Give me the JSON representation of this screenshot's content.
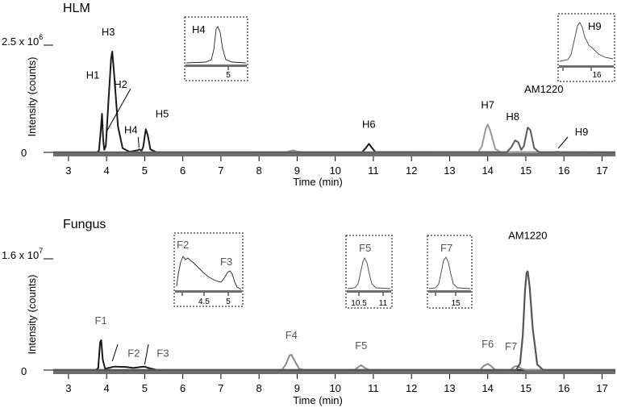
{
  "chart_data": [
    {
      "type": "line",
      "title": "HLM",
      "xlabel": "Time (min)",
      "ylabel": "Intensity (counts)",
      "y_top_label": {
        "mantissa": "2.5 x 10",
        "exponent": "6"
      },
      "y_zero_label": "0",
      "xlim": [
        2.6,
        17.35
      ],
      "ylim": [
        0,
        2500000
      ],
      "x_ticks": [
        3,
        4,
        5,
        6,
        7,
        8,
        9,
        10,
        11,
        12,
        13,
        14,
        15,
        16,
        17
      ],
      "grid": false,
      "series": [
        {
          "color": "#1a1a1a",
          "width": 2.0,
          "points": [
            [
              2.6,
              2000
            ],
            [
              3.75,
              2000
            ],
            [
              3.8,
              40000
            ],
            [
              3.85,
              550000
            ],
            [
              3.88,
              900000
            ],
            [
              3.91,
              300000
            ],
            [
              3.94,
              60000
            ],
            [
              3.98,
              150000
            ],
            [
              4.05,
              1200000
            ],
            [
              4.12,
              2200000
            ],
            [
              4.15,
              2350000
            ],
            [
              4.2,
              1800000
            ],
            [
              4.3,
              600000
            ],
            [
              4.42,
              100000
            ],
            [
              4.6,
              15000
            ],
            [
              4.82,
              50000
            ],
            [
              4.86,
              70000
            ],
            [
              4.92,
              40000
            ],
            [
              4.96,
              120000
            ],
            [
              5.03,
              540000
            ],
            [
              5.08,
              400000
            ],
            [
              5.15,
              70000
            ],
            [
              5.3,
              5000
            ],
            [
              10.7,
              3000
            ],
            [
              10.8,
              100000
            ],
            [
              10.88,
              200000
            ],
            [
              10.95,
              120000
            ],
            [
              11.05,
              10000
            ],
            [
              17.35,
              2000
            ]
          ]
        },
        {
          "color": "#9a9a9a",
          "width": 2.0,
          "points": [
            [
              2.6,
              2000
            ],
            [
              8.7,
              3000
            ],
            [
              8.8,
              30000
            ],
            [
              8.9,
              50000
            ],
            [
              9.0,
              20000
            ],
            [
              9.15,
              3000
            ],
            [
              13.75,
              3000
            ],
            [
              13.85,
              150000
            ],
            [
              13.95,
              550000
            ],
            [
              14.0,
              650000
            ],
            [
              14.07,
              500000
            ],
            [
              14.2,
              80000
            ],
            [
              14.35,
              5000
            ],
            [
              17.35,
              2000
            ]
          ]
        },
        {
          "color": "#5a5a5a",
          "width": 2.0,
          "points": [
            [
              2.6,
              2000
            ],
            [
              14.5,
              3000
            ],
            [
              14.62,
              120000
            ],
            [
              14.72,
              280000
            ],
            [
              14.8,
              240000
            ],
            [
              14.88,
              60000
            ],
            [
              14.95,
              150000
            ],
            [
              15.05,
              580000
            ],
            [
              15.12,
              520000
            ],
            [
              15.22,
              100000
            ],
            [
              15.35,
              5000
            ],
            [
              15.75,
              5000
            ],
            [
              15.82,
              15000
            ],
            [
              15.9,
              8000
            ],
            [
              17.35,
              2000
            ]
          ]
        }
      ],
      "annotations": [
        {
          "label": "H1",
          "x": 3.85,
          "y": 550000
        },
        {
          "label": "H2",
          "x": 3.98,
          "y": 150000
        },
        {
          "label": "H3",
          "x": 4.15,
          "y": 2350000
        },
        {
          "label": "H4",
          "x": 4.85,
          "y": 70000
        },
        {
          "label": "H5",
          "x": 5.03,
          "y": 540000
        },
        {
          "label": "H6",
          "x": 10.88,
          "y": 200000
        },
        {
          "label": "H7",
          "x": 14.0,
          "y": 650000
        },
        {
          "label": "H8",
          "x": 14.72,
          "y": 280000
        },
        {
          "label": "AM1220",
          "x": 15.05,
          "y": 580000
        },
        {
          "label": "H9",
          "x": 15.82,
          "y": 15000
        }
      ],
      "insets": [
        {
          "label": "H4",
          "tick": "5",
          "peak_x": 4.85
        },
        {
          "label": "H9",
          "tick": "16",
          "peak_x": 15.82
        }
      ]
    },
    {
      "type": "line",
      "title": "Fungus",
      "xlabel": "Time (min)",
      "ylabel": "Intensity (counts)",
      "y_top_label": {
        "mantissa": "1.6 x 10",
        "exponent": "7"
      },
      "y_zero_label": "0",
      "xlim": [
        2.6,
        17.35
      ],
      "ylim": [
        0,
        16000000
      ],
      "x_ticks": [
        3,
        4,
        5,
        6,
        7,
        8,
        9,
        10,
        11,
        12,
        13,
        14,
        15,
        16,
        17
      ],
      "grid": false,
      "series": [
        {
          "color": "#1a1a1a",
          "width": 2.0,
          "points": [
            [
              2.6,
              10000
            ],
            [
              3.72,
              10000
            ],
            [
              3.78,
              300000
            ],
            [
              3.83,
              4000000
            ],
            [
              3.86,
              4300000
            ],
            [
              3.9,
              1500000
            ],
            [
              3.96,
              200000
            ],
            [
              4.05,
              300000
            ],
            [
              4.2,
              500000
            ],
            [
              4.5,
              450000
            ],
            [
              4.7,
              300000
            ],
            [
              4.9,
              450000
            ],
            [
              5.0,
              500000
            ],
            [
              5.1,
              300000
            ],
            [
              5.3,
              50000
            ],
            [
              5.5,
              10000
            ],
            [
              17.35,
              10000
            ]
          ]
        },
        {
          "color": "#8a8a8a",
          "width": 2.0,
          "points": [
            [
              2.6,
              10000
            ],
            [
              8.6,
              20000
            ],
            [
              8.7,
              800000
            ],
            [
              8.8,
              2100000
            ],
            [
              8.85,
              2200000
            ],
            [
              8.92,
              1500000
            ],
            [
              9.05,
              200000
            ],
            [
              9.2,
              20000
            ],
            [
              10.5,
              20000
            ],
            [
              10.62,
              500000
            ],
            [
              10.68,
              700000
            ],
            [
              10.78,
              300000
            ],
            [
              10.9,
              20000
            ],
            [
              13.8,
              20000
            ],
            [
              13.9,
              600000
            ],
            [
              14.0,
              900000
            ],
            [
              14.08,
              600000
            ],
            [
              14.2,
              50000
            ],
            [
              14.6,
              30000
            ],
            [
              14.7,
              500000
            ],
            [
              14.78,
              600000
            ],
            [
              14.88,
              200000
            ],
            [
              15.0,
              20000
            ],
            [
              17.35,
              10000
            ]
          ]
        },
        {
          "color": "#555555",
          "width": 2.2,
          "points": [
            [
              2.6,
              10000
            ],
            [
              14.75,
              20000
            ],
            [
              14.85,
              1000000
            ],
            [
              14.92,
              5000000
            ],
            [
              14.98,
              11500000
            ],
            [
              15.02,
              14000000
            ],
            [
              15.05,
              14200000
            ],
            [
              15.1,
              12000000
            ],
            [
              15.18,
              6000000
            ],
            [
              15.3,
              800000
            ],
            [
              15.45,
              30000
            ],
            [
              17.35,
              10000
            ]
          ]
        }
      ],
      "annotations": [
        {
          "label": "F1",
          "x": 3.85,
          "y": 4300000
        },
        {
          "label": "F2",
          "x": 4.3,
          "y": 500000
        },
        {
          "label": "F3",
          "x": 5.0,
          "y": 500000
        },
        {
          "label": "F4",
          "x": 8.85,
          "y": 2200000
        },
        {
          "label": "F5",
          "x": 10.68,
          "y": 700000
        },
        {
          "label": "F6",
          "x": 14.0,
          "y": 900000
        },
        {
          "label": "F7",
          "x": 14.78,
          "y": 600000
        },
        {
          "label": "AM1220",
          "x": 15.05,
          "y": 14200000
        }
      ],
      "insets": [
        {
          "labels": [
            "F2",
            "F3"
          ],
          "ticks": [
            "4.5",
            "5"
          ]
        },
        {
          "label": "F5",
          "ticks": [
            "10.5",
            "11"
          ]
        },
        {
          "label": "F7",
          "tick": "15"
        }
      ]
    }
  ]
}
